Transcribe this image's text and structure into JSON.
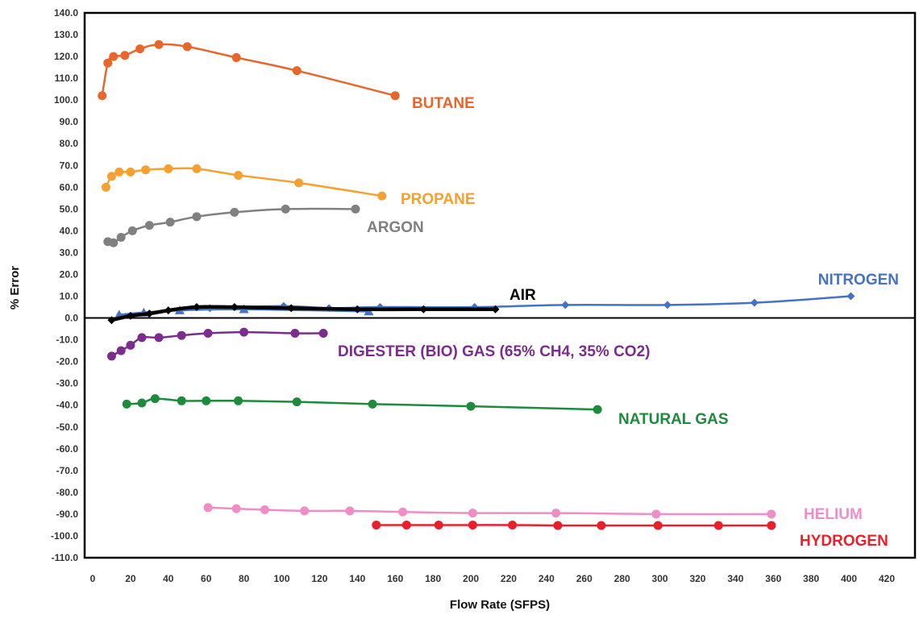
{
  "chart_data": {
    "type": "line",
    "title": "",
    "xlabel": "Flow Rate (SFPS)",
    "ylabel": "% Error",
    "xlim": [
      0,
      420
    ],
    "ylim": [
      -110,
      140
    ],
    "x_ticks": [
      "0",
      "20",
      "40",
      "60",
      "80",
      "100",
      "120",
      "140",
      "160",
      "180",
      "200",
      "220",
      "240",
      "260",
      "280",
      "300",
      "320",
      "340",
      "360",
      "380",
      "400",
      "420"
    ],
    "y_ticks": [
      "140.0",
      "130.0",
      "120.0",
      "110.0",
      "100.0",
      "90.0",
      "80.0",
      "70.0",
      "60.0",
      "50.0",
      "40.0",
      "30.0",
      "20.0",
      "10.0",
      "0.0",
      "-10.0",
      "-20.0",
      "-30.0",
      "-40.0",
      "-50.0",
      "-60.0",
      "-70.0",
      "-80.0",
      "-90.0",
      "-100.0",
      "-110.0"
    ],
    "grid": false,
    "legend": "none (series labeled inline)",
    "series": [
      {
        "name": "BUTANE",
        "color": "#E8662C",
        "marker": "circle",
        "points": [
          [
            5,
            102
          ],
          [
            8,
            117
          ],
          [
            11,
            120
          ],
          [
            17,
            120.5
          ],
          [
            25,
            123.5
          ],
          [
            35,
            125.5
          ],
          [
            50,
            124.5
          ],
          [
            76,
            119.5
          ],
          [
            108,
            113.5
          ],
          [
            160,
            102
          ]
        ]
      },
      {
        "name": "PROPANE",
        "color": "#F5A030",
        "marker": "circle",
        "points": [
          [
            7,
            60
          ],
          [
            10,
            65
          ],
          [
            14,
            67
          ],
          [
            20,
            67
          ],
          [
            28,
            68
          ],
          [
            40,
            68.5
          ],
          [
            55,
            68.5
          ],
          [
            77,
            65.5
          ],
          [
            109,
            62
          ],
          [
            153,
            56
          ]
        ]
      },
      {
        "name": "ARGON",
        "color": "#808080",
        "marker": "circle",
        "points": [
          [
            8,
            35
          ],
          [
            11,
            34.5
          ],
          [
            15,
            37
          ],
          [
            21,
            40
          ],
          [
            30,
            42.5
          ],
          [
            41,
            44
          ],
          [
            55,
            46.5
          ],
          [
            75,
            48.5
          ],
          [
            102,
            50
          ],
          [
            139,
            50
          ]
        ]
      },
      {
        "name": "AIR",
        "color": "#000000",
        "marker": "diamond",
        "points": [
          [
            10,
            -1
          ],
          [
            20,
            1
          ],
          [
            30,
            2
          ],
          [
            40,
            3.5
          ],
          [
            55,
            5
          ],
          [
            75,
            5
          ],
          [
            105,
            4.5
          ],
          [
            140,
            4
          ],
          [
            175,
            4
          ],
          [
            213,
            4
          ]
        ]
      },
      {
        "name": "NITROGEN",
        "color": "#4472C4",
        "marker": "diamond",
        "points": [
          [
            62,
            4.5
          ],
          [
            101,
            5.5
          ],
          [
            125,
            4.5
          ],
          [
            152,
            5
          ],
          [
            202,
            5
          ],
          [
            250,
            6
          ],
          [
            304,
            6
          ],
          [
            350,
            7
          ],
          [
            401,
            10
          ]
        ]
      },
      {
        "name": "",
        "color": "#4472C4",
        "marker": "triangle",
        "points": [
          [
            14,
            1.5
          ],
          [
            27,
            2.5
          ],
          [
            46,
            3.5
          ],
          [
            80,
            4
          ],
          [
            146,
            3
          ]
        ]
      },
      {
        "name": "DIGESTER (BIO) GAS (65% CH4, 35% CO2)",
        "color": "#7B2C8E",
        "marker": "circle",
        "points": [
          [
            10,
            -17.5
          ],
          [
            15,
            -15
          ],
          [
            20,
            -12.5
          ],
          [
            26,
            -9
          ],
          [
            35,
            -9
          ],
          [
            47,
            -8
          ],
          [
            61,
            -7
          ],
          [
            80,
            -6.5
          ],
          [
            107,
            -7
          ],
          [
            122,
            -7
          ]
        ]
      },
      {
        "name": "NATURAL GAS",
        "color": "#1E8B3C",
        "marker": "circle",
        "points": [
          [
            18,
            -39.5
          ],
          [
            26,
            -39
          ],
          [
            33,
            -37
          ],
          [
            47,
            -38
          ],
          [
            60,
            -38
          ],
          [
            77,
            -38
          ],
          [
            108,
            -38.5
          ],
          [
            148,
            -39.5
          ],
          [
            200,
            -40.5
          ],
          [
            267,
            -42
          ]
        ]
      },
      {
        "name": "HELIUM",
        "color": "#F08CC6",
        "marker": "circle",
        "points": [
          [
            61,
            -87
          ],
          [
            76,
            -87.5
          ],
          [
            91,
            -88
          ],
          [
            112,
            -88.5
          ],
          [
            136,
            -88.5
          ],
          [
            164,
            -89
          ],
          [
            201,
            -89.5
          ],
          [
            245,
            -89.5
          ],
          [
            298,
            -90
          ],
          [
            359,
            -90
          ]
        ]
      },
      {
        "name": "HYDROGEN",
        "color": "#E8202A",
        "marker": "circle",
        "points": [
          [
            150,
            -95
          ],
          [
            166,
            -95
          ],
          [
            183,
            -95
          ],
          [
            201,
            -95
          ],
          [
            222,
            -95
          ],
          [
            246,
            -95.2
          ],
          [
            269,
            -95.2
          ],
          [
            299,
            -95.2
          ],
          [
            331,
            -95.2
          ],
          [
            359,
            -95.2
          ]
        ]
      }
    ]
  }
}
